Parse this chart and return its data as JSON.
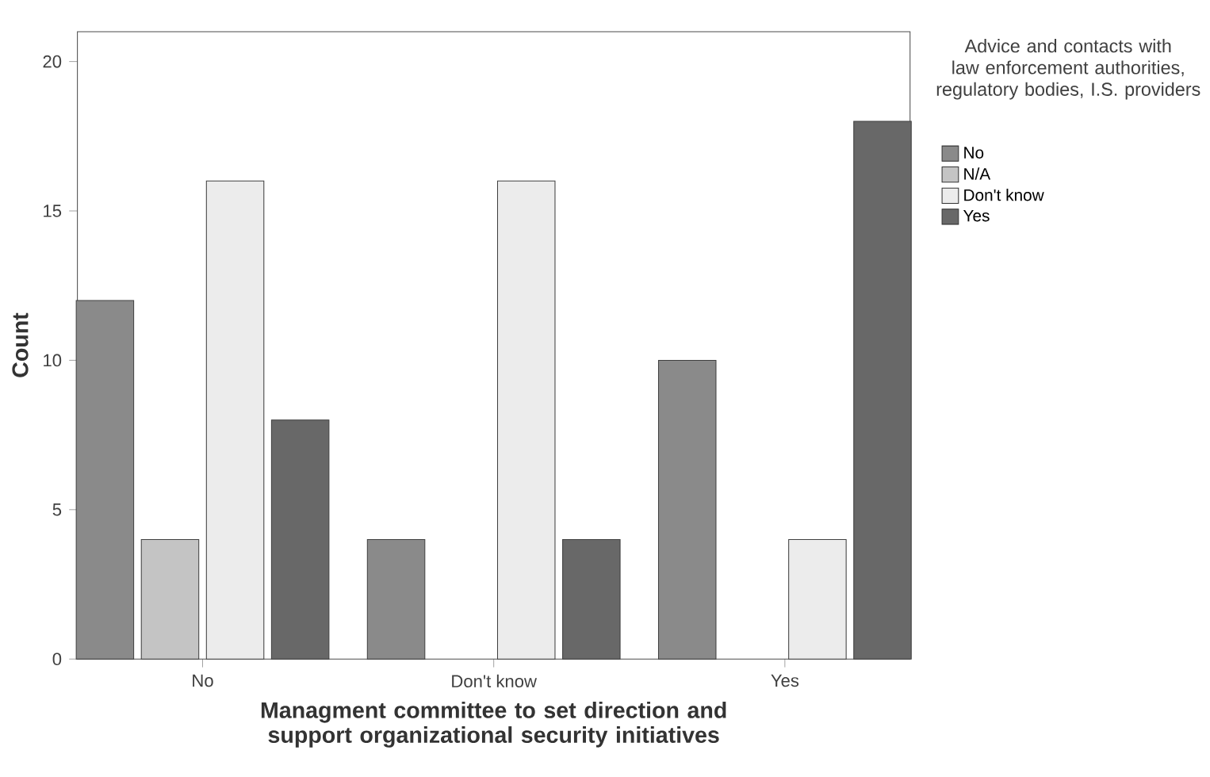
{
  "chart_data": {
    "type": "bar",
    "xlabel": "Managment committee to set direction and support organizational security initiatives",
    "ylabel": "Count",
    "legend_title": "Advice and contacts with law enforcement authorities, regulatory bodies, I.S. providers",
    "categories": [
      "No",
      "Don't know",
      "Yes"
    ],
    "series": [
      {
        "name": "No",
        "color": "#8a8a8a",
        "values": [
          12,
          4,
          10
        ]
      },
      {
        "name": "N/A",
        "color": "#c4c4c4",
        "values": [
          4,
          null,
          null
        ]
      },
      {
        "name": "Don't know",
        "color": "#ececec",
        "values": [
          16,
          16,
          4
        ]
      },
      {
        "name": "Yes",
        "color": "#686868",
        "values": [
          8,
          4,
          18
        ]
      }
    ],
    "ylim": [
      0,
      21
    ],
    "yticks": [
      0,
      5,
      10,
      15,
      20
    ],
    "grid": false,
    "legend": "right"
  }
}
